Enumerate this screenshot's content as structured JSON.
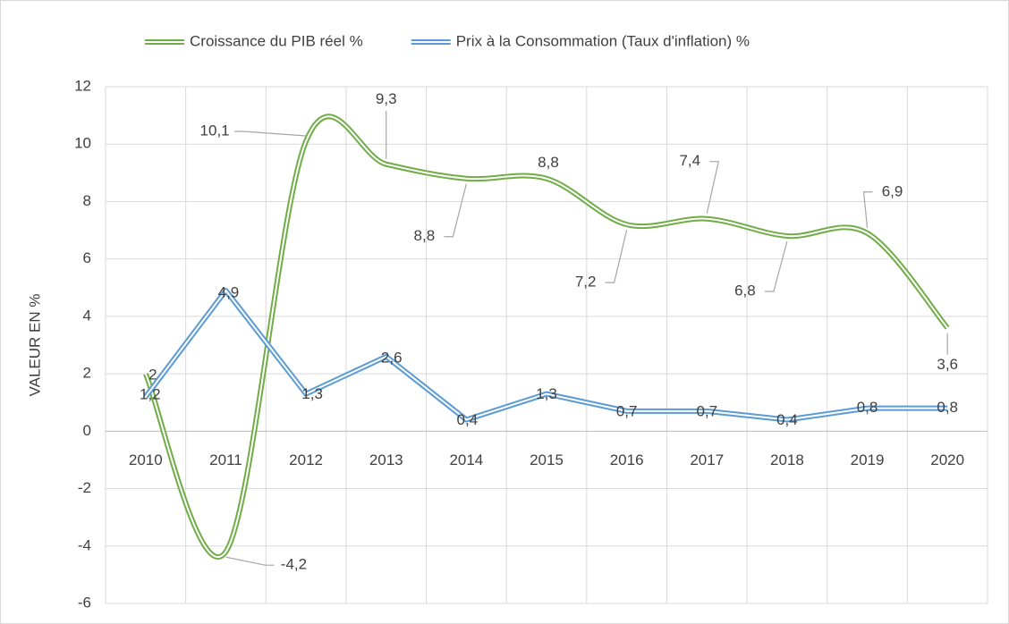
{
  "chart_data": {
    "type": "line",
    "y_label": "VALEUR EN %",
    "categories": [
      "2010",
      "2011",
      "2012",
      "2013",
      "2014",
      "2015",
      "2016",
      "2017",
      "2018",
      "2019",
      "2020"
    ],
    "series": [
      {
        "name": "Croissance du PIB réel %",
        "color": "#70ad47",
        "values": [
          2,
          -4.2,
          10.1,
          9.3,
          8.8,
          8.8,
          7.2,
          7.4,
          6.8,
          6.9,
          3.6
        ],
        "value_labels": [
          "2",
          "-4,2",
          "10,1",
          "9,3",
          "8,8",
          "8,8",
          "7,2",
          "7,4",
          "6,8",
          "6,9",
          "3,6"
        ]
      },
      {
        "name": "Prix à la Consommation (Taux d'inflation) %",
        "color": "#5b9bd5",
        "values": [
          1.2,
          4.9,
          1.3,
          2.6,
          0.4,
          1.3,
          0.7,
          0.7,
          0.4,
          0.8,
          0.8
        ],
        "value_labels": [
          "1,2",
          "4,9",
          "1,3",
          "2,6",
          "0,4",
          "1,3",
          "0,7",
          "0,7",
          "0,4",
          "0,8",
          "0,8"
        ]
      }
    ],
    "ylim": [
      -6,
      12
    ],
    "yticks": [
      -6,
      -4,
      -2,
      0,
      2,
      4,
      6,
      8,
      10,
      12
    ],
    "grid": true,
    "smooth": true,
    "legend": "top"
  }
}
